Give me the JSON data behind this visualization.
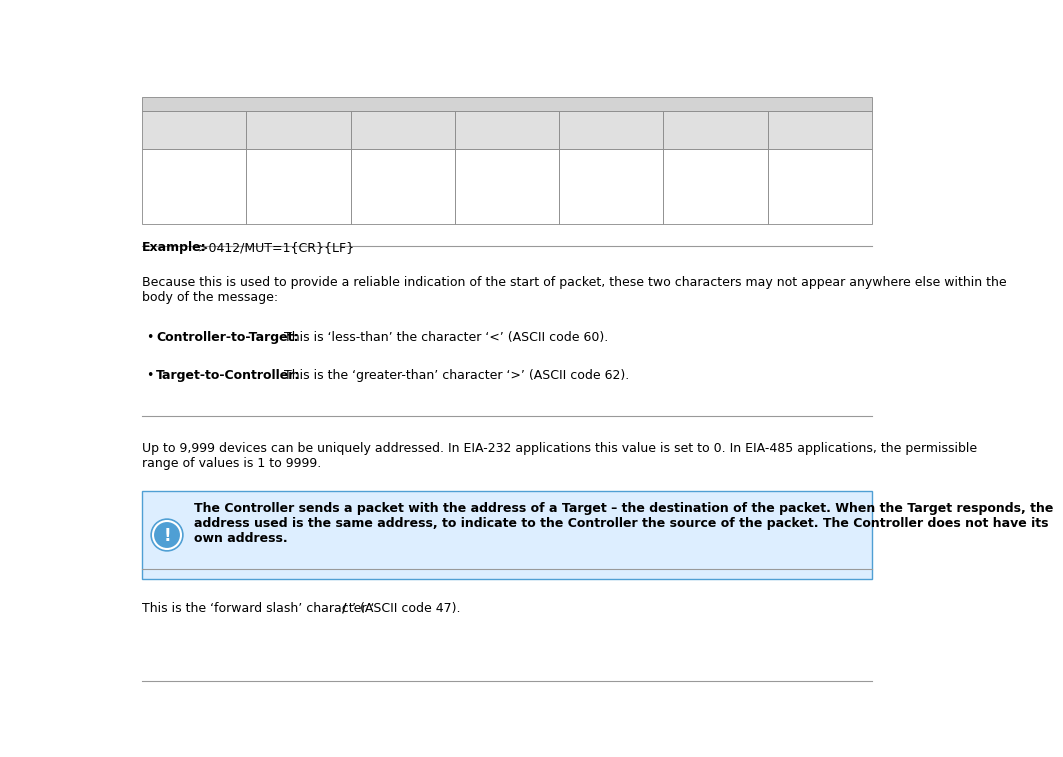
{
  "bg_color": "#ffffff",
  "header_color": "#d3d3d3",
  "cell_color": "#e0e0e0",
  "example_text_bold": "Example:",
  "example_text_rest": " >0412/MUT=1{CR}{LF}",
  "section1_para": "Because this is used to provide a reliable indication of the start of packet, these two characters may not appear anywhere else within the\nbody of the message:",
  "bullet1_bold": "Controller-to-Target:",
  "bullet1_rest": " This is ‘less-than’ the character ‘<’ (ASCII code 60).",
  "bullet2_bold": "Target-to-Controller:",
  "bullet2_rest": " This is the ‘greater-than’ character ‘>’ (ASCII code 62).",
  "section2_para": "Up to 9,999 devices can be uniquely addressed. In EIA-232 applications this value is set to 0. In EIA-485 applications, the permissible\nrange of values is 1 to 9999.",
  "note_text": "The Controller sends a packet with the address of a Target – the destination of the packet. When the Target responds, the\naddress used is the same address, to indicate to the Controller the source of the packet. The Controller does not have its\nown address.",
  "section3_para_pre": "This is the ‘forward slash’ character ‘ ",
  "section3_para_bold": "/",
  "section3_para_post": " ’ (ASCII code 47).",
  "divider_color": "#999999",
  "text_color": "#000000",
  "note_border_color": "#4f9fd4",
  "note_fill_color": "#ddeeff",
  "font_size": 9.0,
  "ncols": 7
}
